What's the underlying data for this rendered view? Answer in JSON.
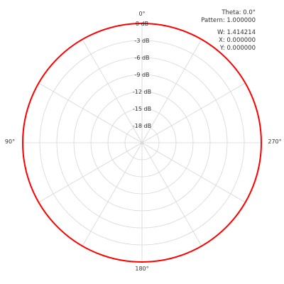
{
  "chart_data": {
    "type": "polar",
    "title": "",
    "angle_labels": [
      {
        "label": "0°",
        "angle_deg": 0
      },
      {
        "label": "90°",
        "angle_deg": 90
      },
      {
        "label": "180°",
        "angle_deg": 180
      },
      {
        "label": "270°",
        "angle_deg": 270
      }
    ],
    "angle_grid_step_deg": 30,
    "radial_axis": {
      "unit": "dB",
      "ticks": [
        {
          "label": "0 dB",
          "value": 0
        },
        {
          "label": "-3 dB",
          "value": -3
        },
        {
          "label": "-6 dB",
          "value": -6
        },
        {
          "label": "-9 dB",
          "value": -9
        },
        {
          "label": "-12 dB",
          "value": -12
        },
        {
          "label": "-15 dB",
          "value": -15
        },
        {
          "label": "-18 dB",
          "value": -18
        }
      ],
      "range_db": [
        -21,
        0
      ]
    },
    "series": [
      {
        "pattern": "omnidirectional",
        "gain_db": 0,
        "color": "#ff0000"
      }
    ],
    "grid": true
  },
  "readout": {
    "theta": "Theta: 0.0°",
    "pattern": "Pattern: 1.000000",
    "w": "W: 1.414214",
    "x": "X: 0.000000",
    "y": "Y: 0.000000"
  },
  "colors": {
    "grid": "#d6d6d6",
    "trace": "#ff0000",
    "text": "#333333",
    "background": "#ffffff"
  }
}
